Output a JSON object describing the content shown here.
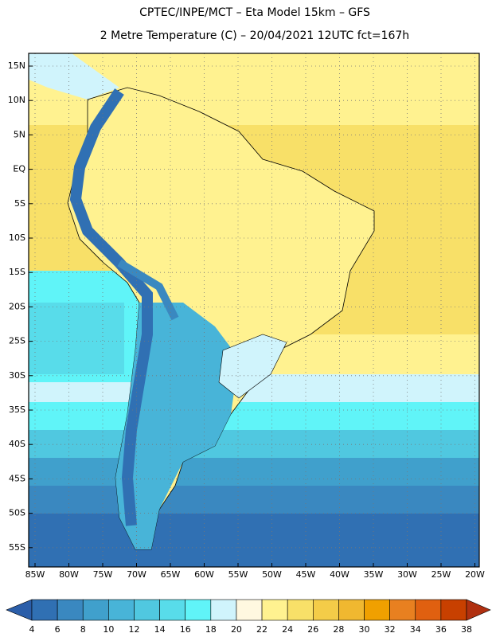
{
  "header": {
    "title": "CPTEC/INPE/MCT –  Eta Model 15km – GFS",
    "subtitle": "2 Metre Temperature (C) – 20/04/2021 12UTC fct=167h"
  },
  "map": {
    "lat_labels": [
      "15N",
      "10N",
      "5N",
      "EQ",
      "5S",
      "10S",
      "15S",
      "20S",
      "25S",
      "30S",
      "35S",
      "40S",
      "45S",
      "50S",
      "55S"
    ],
    "lon_labels": [
      "85W",
      "80W",
      "75W",
      "70W",
      "65W",
      "60W",
      "55W",
      "50W",
      "45W",
      "40W",
      "35W",
      "30W",
      "25W",
      "20W"
    ]
  },
  "colorbar": {
    "ticks": [
      4,
      6,
      8,
      10,
      12,
      14,
      16,
      18,
      20,
      22,
      24,
      26,
      28,
      30,
      32,
      34,
      36,
      38
    ],
    "colors": [
      "#2b5ea9",
      "#3070b3",
      "#3a88c0",
      "#40a0cc",
      "#48b4d8",
      "#50c8e0",
      "#58dcea",
      "#60f4f8",
      "#d0f4fc",
      "#fff8e0",
      "#fff290",
      "#f8e068",
      "#f4cc48",
      "#f0b830",
      "#f0a000",
      "#e88020",
      "#e06010",
      "#c84000",
      "#b03010"
    ]
  }
}
